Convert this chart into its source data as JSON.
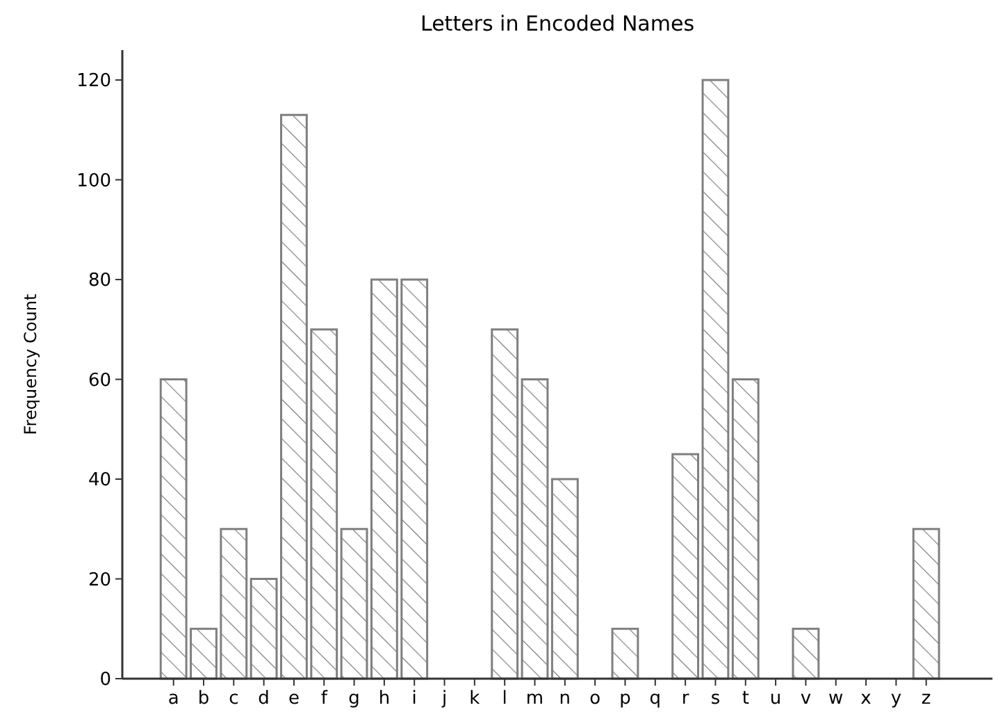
{
  "chart_data": {
    "type": "bar",
    "title": "Letters in Encoded Names",
    "ylabel": "Frequency Count",
    "categories": [
      "a",
      "b",
      "c",
      "d",
      "e",
      "f",
      "g",
      "h",
      "i",
      "j",
      "k",
      "l",
      "m",
      "n",
      "o",
      "p",
      "q",
      "r",
      "s",
      "t",
      "u",
      "v",
      "w",
      "x",
      "y",
      "z"
    ],
    "values": [
      60,
      10,
      30,
      20,
      113,
      70,
      30,
      80,
      80,
      0,
      0,
      70,
      60,
      40,
      0,
      10,
      0,
      45,
      120,
      60,
      0,
      10,
      0,
      0,
      0,
      30
    ],
    "color": "#7f7f7f",
    "ylim": [
      0,
      126
    ],
    "yticks": [
      0,
      20,
      40,
      60,
      80,
      100,
      120
    ],
    "grid": false
  }
}
